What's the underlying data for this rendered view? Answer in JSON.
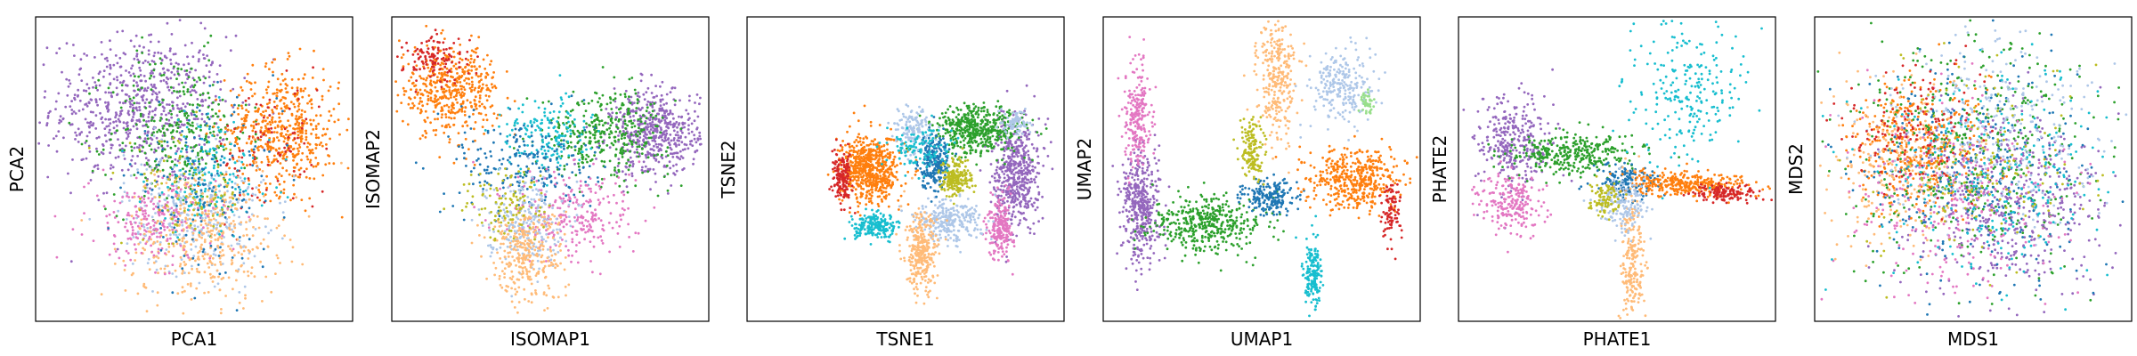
{
  "colors": {
    "tab_blue": "#1f77b4",
    "tab_orange": "#ff7f0e",
    "tab_green": "#2ca02c",
    "tab_red": "#d62728",
    "tab_purple": "#9467bd",
    "tab_pink": "#e377c2",
    "tab_olive": "#bcbd22",
    "tab_cyan": "#17becf",
    "light_orange": "#ffbb78",
    "light_blue": "#aec7e8",
    "light_green": "#98df8a"
  },
  "chart_data": [
    {
      "type": "scatter",
      "xlabel": "PCA1",
      "ylabel": "PCA2",
      "ticks": "none",
      "clusters": [
        {
          "color": "#9467bd",
          "x": 0.33,
          "y": 0.7,
          "sx": 0.14,
          "sy": 0.12,
          "n": 700
        },
        {
          "color": "#2ca02c",
          "x": 0.45,
          "y": 0.62,
          "sx": 0.11,
          "sy": 0.13,
          "n": 320
        },
        {
          "color": "#ff7f0e",
          "x": 0.78,
          "y": 0.63,
          "sx": 0.09,
          "sy": 0.1,
          "n": 520
        },
        {
          "color": "#d62728",
          "x": 0.74,
          "y": 0.56,
          "sx": 0.09,
          "sy": 0.11,
          "n": 90
        },
        {
          "color": "#aec7e8",
          "x": 0.5,
          "y": 0.36,
          "sx": 0.11,
          "sy": 0.1,
          "n": 320
        },
        {
          "color": "#ffbb78",
          "x": 0.53,
          "y": 0.28,
          "sx": 0.12,
          "sy": 0.11,
          "n": 420
        },
        {
          "color": "#e377c2",
          "x": 0.37,
          "y": 0.33,
          "sx": 0.1,
          "sy": 0.07,
          "n": 220
        },
        {
          "color": "#17becf",
          "x": 0.55,
          "y": 0.48,
          "sx": 0.1,
          "sy": 0.1,
          "n": 140
        },
        {
          "color": "#1f77b4",
          "x": 0.53,
          "y": 0.44,
          "sx": 0.12,
          "sy": 0.13,
          "n": 170
        },
        {
          "color": "#bcbd22",
          "x": 0.47,
          "y": 0.42,
          "sx": 0.1,
          "sy": 0.09,
          "n": 90
        }
      ]
    },
    {
      "type": "scatter",
      "xlabel": "ISOMAP1",
      "ylabel": "ISOMAP2",
      "ticks": "none",
      "clusters": [
        {
          "color": "#ff7f0e",
          "x": 0.18,
          "y": 0.76,
          "sx": 0.08,
          "sy": 0.07,
          "n": 480
        },
        {
          "color": "#d62728",
          "x": 0.14,
          "y": 0.86,
          "sx": 0.05,
          "sy": 0.04,
          "n": 120
        },
        {
          "color": "#9467bd",
          "x": 0.83,
          "y": 0.62,
          "sx": 0.07,
          "sy": 0.07,
          "n": 520
        },
        {
          "color": "#2ca02c",
          "x": 0.68,
          "y": 0.62,
          "sx": 0.1,
          "sy": 0.07,
          "n": 360
        },
        {
          "color": "#17becf",
          "x": 0.48,
          "y": 0.61,
          "sx": 0.07,
          "sy": 0.06,
          "n": 160
        },
        {
          "color": "#1f77b4",
          "x": 0.42,
          "y": 0.52,
          "sx": 0.11,
          "sy": 0.08,
          "n": 220
        },
        {
          "color": "#e377c2",
          "x": 0.58,
          "y": 0.35,
          "sx": 0.1,
          "sy": 0.08,
          "n": 260
        },
        {
          "color": "#aec7e8",
          "x": 0.42,
          "y": 0.33,
          "sx": 0.06,
          "sy": 0.07,
          "n": 240
        },
        {
          "color": "#ffbb78",
          "x": 0.42,
          "y": 0.22,
          "sx": 0.06,
          "sy": 0.08,
          "n": 320
        },
        {
          "color": "#bcbd22",
          "x": 0.37,
          "y": 0.38,
          "sx": 0.07,
          "sy": 0.06,
          "n": 110
        }
      ]
    },
    {
      "type": "scatter",
      "xlabel": "TSNE1",
      "ylabel": "TSNE2",
      "ticks": "none",
      "clusters": [
        {
          "color": "#ff7f0e",
          "x": 0.39,
          "y": 0.5,
          "sx": 0.045,
          "sy": 0.055,
          "n": 650
        },
        {
          "color": "#d62728",
          "x": 0.3,
          "y": 0.47,
          "sx": 0.015,
          "sy": 0.04,
          "n": 160
        },
        {
          "color": "#9467bd",
          "x": 0.85,
          "y": 0.49,
          "sx": 0.035,
          "sy": 0.09,
          "n": 520
        },
        {
          "color": "#e377c2",
          "x": 0.8,
          "y": 0.31,
          "sx": 0.02,
          "sy": 0.05,
          "n": 220
        },
        {
          "color": "#2ca02c",
          "x": 0.73,
          "y": 0.63,
          "sx": 0.07,
          "sy": 0.04,
          "n": 480
        },
        {
          "color": "#aec7e8",
          "x": 0.63,
          "y": 0.33,
          "sx": 0.055,
          "sy": 0.035,
          "n": 280
        },
        {
          "color": "#ffbb78",
          "x": 0.55,
          "y": 0.22,
          "sx": 0.025,
          "sy": 0.065,
          "n": 300
        },
        {
          "color": "#17becf",
          "x": 0.41,
          "y": 0.31,
          "sx": 0.035,
          "sy": 0.02,
          "n": 200
        },
        {
          "color": "#1f77b4",
          "x": 0.59,
          "y": 0.53,
          "sx": 0.025,
          "sy": 0.045,
          "n": 240
        },
        {
          "color": "#bcbd22",
          "x": 0.66,
          "y": 0.47,
          "sx": 0.025,
          "sy": 0.03,
          "n": 200
        },
        {
          "color": "#aec7e8",
          "x": 0.52,
          "y": 0.63,
          "sx": 0.03,
          "sy": 0.035,
          "n": 140
        },
        {
          "color": "#17becf",
          "x": 0.55,
          "y": 0.57,
          "sx": 0.05,
          "sy": 0.04,
          "n": 120
        },
        {
          "color": "#aec7e8",
          "x": 0.85,
          "y": 0.65,
          "sx": 0.02,
          "sy": 0.02,
          "n": 80
        }
      ]
    },
    {
      "type": "scatter",
      "xlabel": "UMAP1",
      "ylabel": "UMAP2",
      "ticks": "none",
      "clusters": [
        {
          "color": "#9467bd",
          "x": 0.12,
          "y": 0.38,
          "sx": 0.03,
          "sy": 0.09,
          "n": 420
        },
        {
          "color": "#e377c2",
          "x": 0.11,
          "y": 0.67,
          "sx": 0.02,
          "sy": 0.09,
          "n": 230
        },
        {
          "color": "#2ca02c",
          "x": 0.33,
          "y": 0.32,
          "sx": 0.09,
          "sy": 0.045,
          "n": 420
        },
        {
          "color": "#1f77b4",
          "x": 0.52,
          "y": 0.41,
          "sx": 0.04,
          "sy": 0.03,
          "n": 200
        },
        {
          "color": "#bcbd22",
          "x": 0.47,
          "y": 0.56,
          "sx": 0.02,
          "sy": 0.05,
          "n": 150
        },
        {
          "color": "#ffbb78",
          "x": 0.55,
          "y": 0.8,
          "sx": 0.03,
          "sy": 0.1,
          "n": 300
        },
        {
          "color": "#aec7e8",
          "x": 0.75,
          "y": 0.77,
          "sx": 0.05,
          "sy": 0.06,
          "n": 240
        },
        {
          "color": "#98df8a",
          "x": 0.83,
          "y": 0.72,
          "sx": 0.012,
          "sy": 0.02,
          "n": 40
        },
        {
          "color": "#ff7f0e",
          "x": 0.8,
          "y": 0.47,
          "sx": 0.07,
          "sy": 0.05,
          "n": 460
        },
        {
          "color": "#d62728",
          "x": 0.91,
          "y": 0.36,
          "sx": 0.015,
          "sy": 0.05,
          "n": 90
        },
        {
          "color": "#17becf",
          "x": 0.66,
          "y": 0.15,
          "sx": 0.015,
          "sy": 0.06,
          "n": 180
        }
      ]
    },
    {
      "type": "scatter",
      "xlabel": "PHATE1",
      "ylabel": "PHATE2",
      "ticks": "none",
      "clusters": [
        {
          "color": "#9467bd",
          "x": 0.17,
          "y": 0.58,
          "sx": 0.06,
          "sy": 0.08,
          "n": 320
        },
        {
          "color": "#e377c2",
          "x": 0.17,
          "y": 0.38,
          "sx": 0.05,
          "sy": 0.05,
          "n": 220
        },
        {
          "color": "#2ca02c",
          "x": 0.36,
          "y": 0.55,
          "sx": 0.1,
          "sy": 0.035,
          "n": 340
        },
        {
          "color": "#1f77b4",
          "x": 0.53,
          "y": 0.46,
          "sx": 0.05,
          "sy": 0.03,
          "n": 160
        },
        {
          "color": "#ff7f0e",
          "x": 0.72,
          "y": 0.45,
          "sx": 0.1,
          "sy": 0.02,
          "n": 340
        },
        {
          "color": "#d62728",
          "x": 0.85,
          "y": 0.42,
          "sx": 0.05,
          "sy": 0.015,
          "n": 130
        },
        {
          "color": "#ffbb78",
          "x": 0.55,
          "y": 0.2,
          "sx": 0.02,
          "sy": 0.12,
          "n": 240
        },
        {
          "color": "#aec7e8",
          "x": 0.52,
          "y": 0.38,
          "sx": 0.035,
          "sy": 0.04,
          "n": 150
        },
        {
          "color": "#bcbd22",
          "x": 0.46,
          "y": 0.4,
          "sx": 0.025,
          "sy": 0.025,
          "n": 90
        },
        {
          "color": "#17becf",
          "x": 0.72,
          "y": 0.76,
          "sx": 0.09,
          "sy": 0.12,
          "n": 240
        }
      ]
    },
    {
      "type": "scatter",
      "xlabel": "MDS1",
      "ylabel": "MDS2",
      "ticks": "none",
      "clusters": [
        {
          "color": "#9467bd",
          "x": 0.6,
          "y": 0.4,
          "sx": 0.16,
          "sy": 0.15,
          "n": 520
        },
        {
          "color": "#ff7f0e",
          "x": 0.33,
          "y": 0.58,
          "sx": 0.11,
          "sy": 0.11,
          "n": 380
        },
        {
          "color": "#ffbb78",
          "x": 0.28,
          "y": 0.52,
          "sx": 0.12,
          "sy": 0.13,
          "n": 260
        },
        {
          "color": "#2ca02c",
          "x": 0.5,
          "y": 0.55,
          "sx": 0.2,
          "sy": 0.19,
          "n": 420
        },
        {
          "color": "#1f77b4",
          "x": 0.5,
          "y": 0.5,
          "sx": 0.2,
          "sy": 0.2,
          "n": 300
        },
        {
          "color": "#aec7e8",
          "x": 0.55,
          "y": 0.62,
          "sx": 0.17,
          "sy": 0.16,
          "n": 300
        },
        {
          "color": "#e377c2",
          "x": 0.45,
          "y": 0.38,
          "sx": 0.18,
          "sy": 0.17,
          "n": 260
        },
        {
          "color": "#17becf",
          "x": 0.55,
          "y": 0.5,
          "sx": 0.19,
          "sy": 0.18,
          "n": 240
        },
        {
          "color": "#d62728",
          "x": 0.3,
          "y": 0.62,
          "sx": 0.1,
          "sy": 0.1,
          "n": 140
        },
        {
          "color": "#bcbd22",
          "x": 0.5,
          "y": 0.5,
          "sx": 0.18,
          "sy": 0.18,
          "n": 160
        }
      ]
    }
  ]
}
